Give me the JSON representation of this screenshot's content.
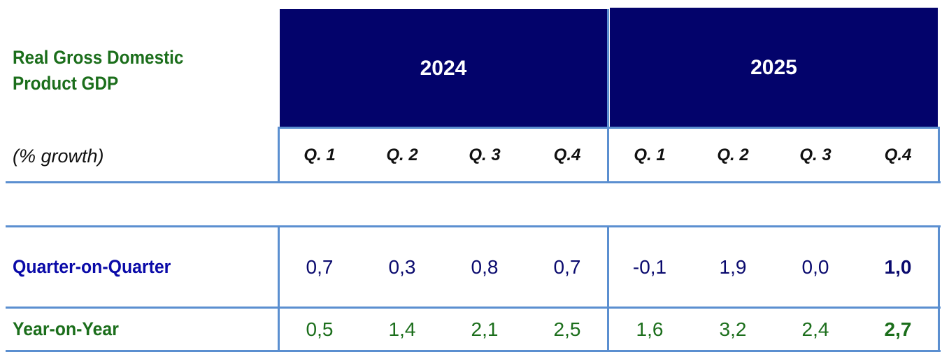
{
  "table": {
    "title": "Real Gross Domestic\nProduct GDP",
    "subtitle": "(% growth)",
    "years": [
      "2024",
      "2025"
    ],
    "quarters": [
      "Q. 1",
      "Q. 2",
      "Q. 3",
      "Q.4",
      "Q. 1",
      "Q. 2",
      "Q. 3",
      "Q.4"
    ],
    "rows": [
      {
        "label": "Quarter-on-Quarter",
        "values": [
          "0,7",
          "0,3",
          "0,8",
          "0,7",
          "-0,1",
          "1,9",
          "0,0",
          "1,0"
        ]
      },
      {
        "label": "Year-on-Year",
        "values": [
          "0,5",
          "1,4",
          "2,1",
          "2,5",
          "1,6",
          "3,2",
          "2,4",
          "2,7"
        ]
      }
    ]
  },
  "colors": {
    "header_fill": "#03036b",
    "grid": "#5b8fd0",
    "green_text": "#1b6e1b",
    "blue_text": "#0a0aa8"
  }
}
